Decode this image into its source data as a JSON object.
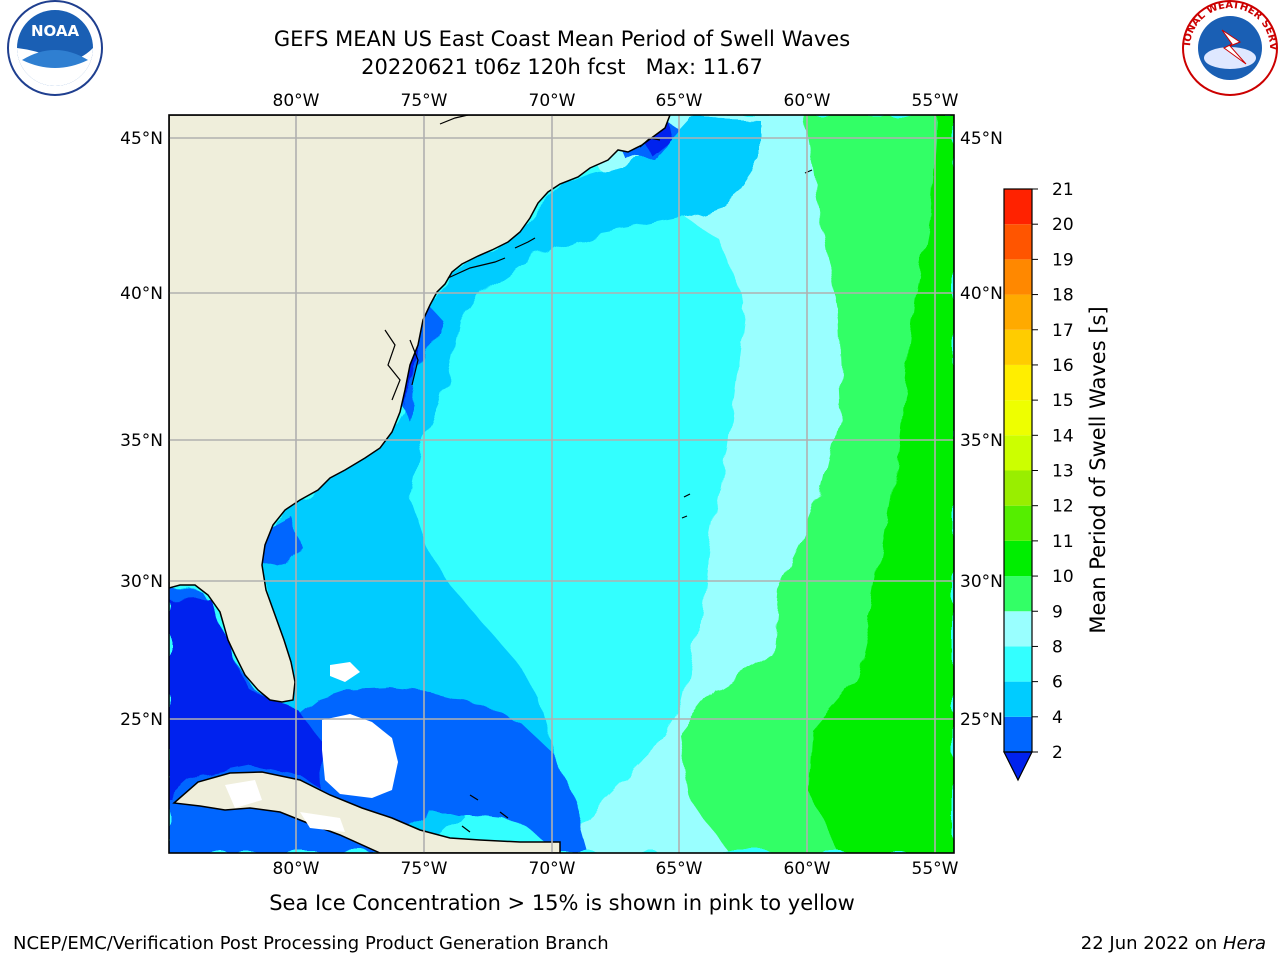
{
  "title": {
    "line1": "GEFS MEAN US East Coast Mean Period of Swell Waves",
    "line2": "20220621 t06z 120h fcst   Max: 11.67"
  },
  "map": {
    "lon_labels": [
      "80°W",
      "75°W",
      "70°W",
      "65°W",
      "60°W",
      "55°W"
    ],
    "lat_labels": [
      "45°N",
      "40°N",
      "35°N",
      "30°N",
      "25°N"
    ],
    "land_color": "#efeedb",
    "grid_color": "#b0b0b0"
  },
  "colorbar": {
    "title": "Mean Period of Swell Waves [s]",
    "levels": [
      "2",
      "4",
      "6",
      "8",
      "9",
      "10",
      "11",
      "12",
      "13",
      "14",
      "15",
      "16",
      "17",
      "18",
      "19",
      "20",
      "21"
    ],
    "colors": [
      "#0066ff",
      "#00ccff",
      "#33ffff",
      "#99ffff",
      "#33ff66",
      "#00ee00",
      "#55ee00",
      "#99ee00",
      "#ccff00",
      "#eeff00",
      "#ffee00",
      "#ffcc00",
      "#ffaa00",
      "#ff8800",
      "#ff5500",
      "#ff2200"
    ],
    "under_color": "#0022ee"
  },
  "caption": "Sea Ice Concentration > 15% is shown in pink to yellow",
  "footer": {
    "left": "NCEP/EMC/Verification Post Processing Product Generation Branch",
    "date": "22 Jun 2022 on ",
    "host": "Hera"
  },
  "logos": {
    "left": "NOAA",
    "right": "NATIONAL WEATHER SERVICE"
  }
}
